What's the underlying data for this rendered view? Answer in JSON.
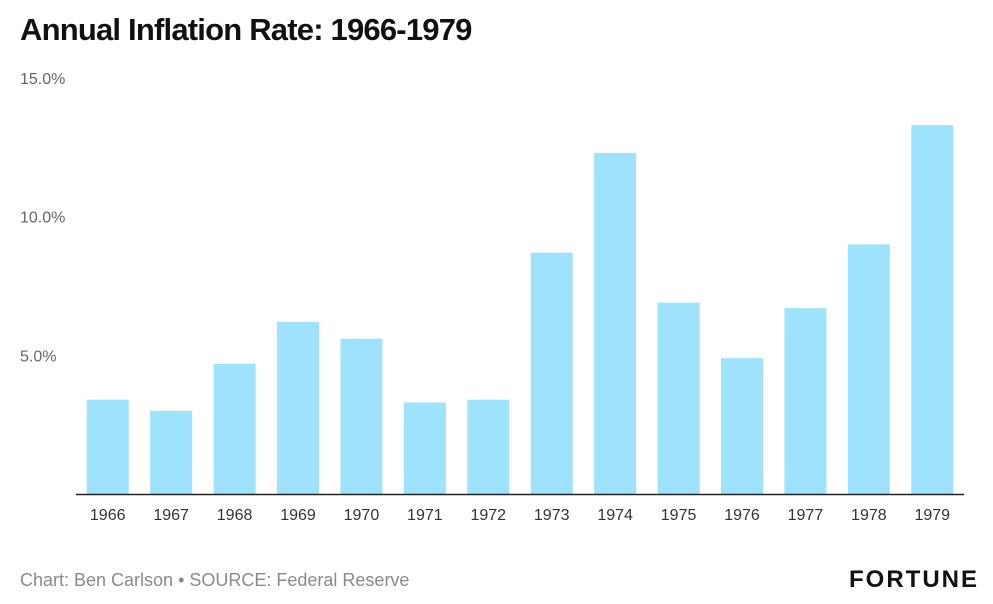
{
  "chart_data": {
    "type": "bar",
    "title": "Annual Inflation Rate: 1966-1979",
    "categories": [
      "1966",
      "1967",
      "1968",
      "1969",
      "1970",
      "1971",
      "1972",
      "1973",
      "1974",
      "1975",
      "1976",
      "1977",
      "1978",
      "1979"
    ],
    "values": [
      3.4,
      3.0,
      4.7,
      6.2,
      5.6,
      3.3,
      3.4,
      8.7,
      12.3,
      6.9,
      4.9,
      6.7,
      9.0,
      13.3
    ],
    "y_ticks": [
      {
        "value": 5,
        "label": "5.0%"
      },
      {
        "value": 10,
        "label": "10.0%"
      },
      {
        "value": 15,
        "label": "15.0%"
      }
    ],
    "ylim": [
      0,
      15
    ],
    "xlabel": "",
    "ylabel": "",
    "grid": false,
    "bar_color": "#9ee3fb"
  },
  "footer": {
    "source": "Chart: Ben Carlson • SOURCE: Federal Reserve",
    "logo": "FORTUNE"
  }
}
